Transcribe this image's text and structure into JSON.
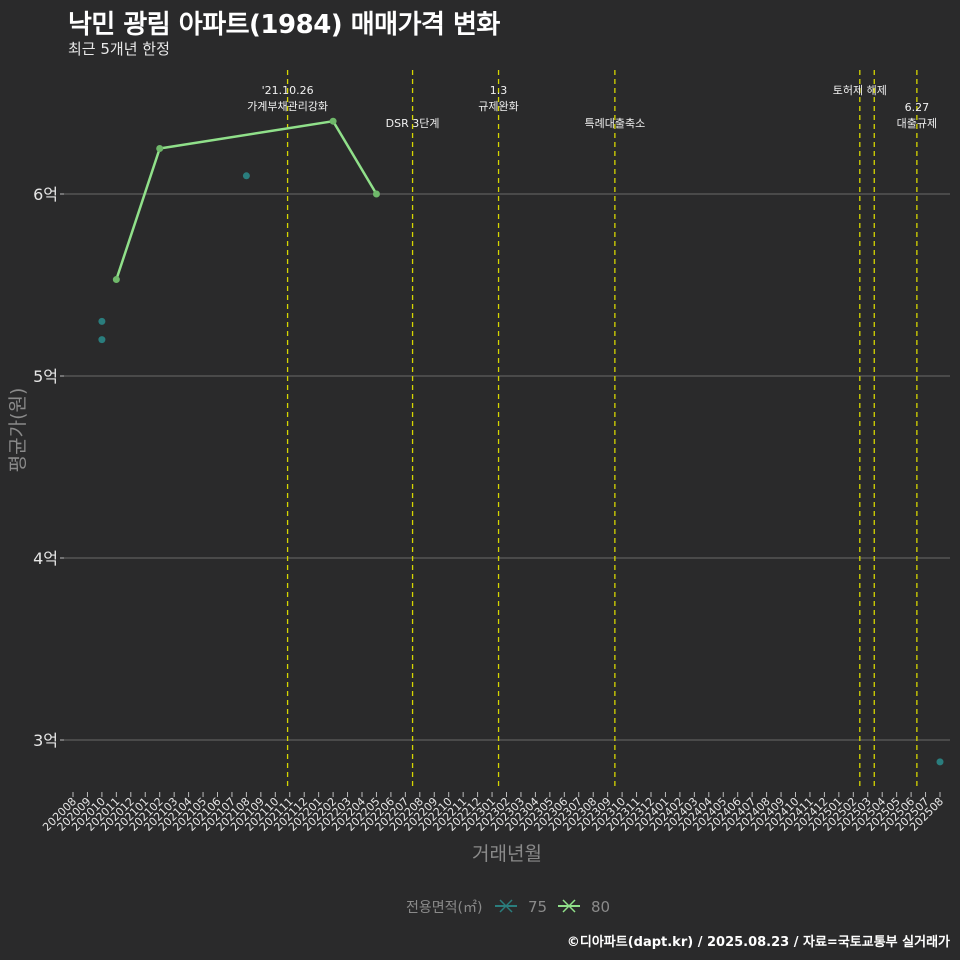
{
  "title": "낙민 광림 아파트(1984) 매매가격 변화",
  "subtitle": "최근 5개년 한정",
  "caption": "©디아파트(dapt.kr) / 2025.08.23 / 자료=국토교통부 실거래가",
  "colors": {
    "background": "#2a2a2b",
    "series_75": "#2a7d7d",
    "series_80": "#90e08a",
    "event_line": "#d6d600",
    "grid": "#6a6a6a"
  },
  "chart_data": {
    "type": "line",
    "xlabel": "거래년월",
    "ylabel": "평균가(원)",
    "x_categories": [
      "202008",
      "202009",
      "202010",
      "202011",
      "202012",
      "202101",
      "202102",
      "202103",
      "202104",
      "202105",
      "202106",
      "202107",
      "202108",
      "202109",
      "202110",
      "202111",
      "202112",
      "202201",
      "202202",
      "202203",
      "202204",
      "202205",
      "202206",
      "202207",
      "202208",
      "202209",
      "202210",
      "202211",
      "202212",
      "202301",
      "202302",
      "202303",
      "202304",
      "202305",
      "202306",
      "202307",
      "202308",
      "202309",
      "202310",
      "202311",
      "202312",
      "202401",
      "202402",
      "202403",
      "202404",
      "202405",
      "202406",
      "202407",
      "202408",
      "202409",
      "202410",
      "202411",
      "202412",
      "202501",
      "202502",
      "202503",
      "202504",
      "202505",
      "202506",
      "202507",
      "202508"
    ],
    "y_ticks": [
      {
        "value": 3.0,
        "label": "3억"
      },
      {
        "value": 4.0,
        "label": "4억"
      },
      {
        "value": 5.0,
        "label": "5억"
      },
      {
        "value": 6.0,
        "label": "6억"
      }
    ],
    "ylim": [
      2.7,
      6.72
    ],
    "y_unit": "억",
    "grid": true,
    "legend": {
      "title": "전용면적(㎡)",
      "placement": "bottom",
      "entries": [
        "75",
        "80"
      ]
    },
    "series": [
      {
        "name": "75",
        "color": "#2a7d7d",
        "mode": "points",
        "points": [
          {
            "x": "202010",
            "y": 5.3
          },
          {
            "x": "202010",
            "y": 5.2
          },
          {
            "x": "202108",
            "y": 6.1
          },
          {
            "x": "202508",
            "y": 2.88
          }
        ]
      },
      {
        "name": "80",
        "color": "#90e08a",
        "mode": "line",
        "points": [
          {
            "x": "202011",
            "y": 5.53
          },
          {
            "x": "202102",
            "y": 6.25
          },
          {
            "x": "202202",
            "y": 6.4
          },
          {
            "x": "202205",
            "y": 6.0
          }
        ]
      }
    ],
    "events": [
      {
        "x": 14.85,
        "lines": [
          "'21.10.26",
          "가계부채관리강화"
        ],
        "row": "high"
      },
      {
        "x": 23.5,
        "lines": [
          "DSR 3단계"
        ],
        "row": "low"
      },
      {
        "x": 29.45,
        "lines": [
          "1.3",
          "규제완화"
        ],
        "row": "high"
      },
      {
        "x": 37.5,
        "lines": [
          "특례대출축소"
        ],
        "row": "low"
      },
      {
        "x": 54.45,
        "lines": [
          "토허제 해제"
        ],
        "row": "high"
      },
      {
        "x": 55.45,
        "lines": [],
        "row": "none"
      },
      {
        "x": 58.4,
        "lines": [
          "6.27",
          "대출규제"
        ],
        "row": "low"
      }
    ]
  }
}
